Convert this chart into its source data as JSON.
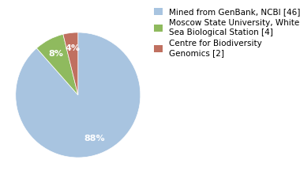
{
  "legend_labels": [
    "Mined from GenBank, NCBI [46]",
    "Moscow State University, White\nSea Biological Station [4]",
    "Centre for Biodiversity\nGenomics [2]"
  ],
  "values": [
    46,
    4,
    2
  ],
  "colors": [
    "#a8c4e0",
    "#8fba5e",
    "#c07060"
  ],
  "background_color": "#ffffff",
  "label_fontsize": 8,
  "legend_fontsize": 7.5,
  "pct_fontsize": 8
}
